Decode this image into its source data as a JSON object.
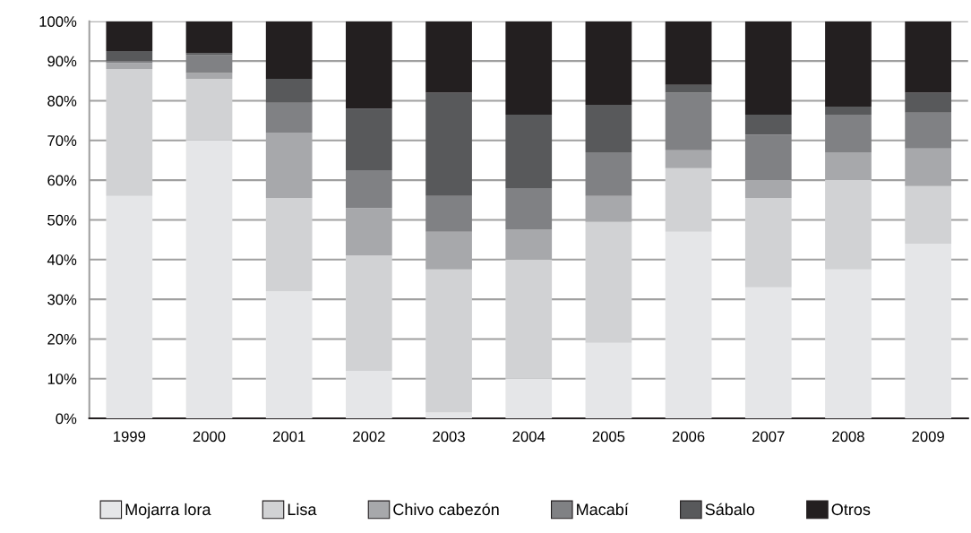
{
  "chart_data": {
    "type": "bar",
    "stacked": true,
    "categories": [
      "1999",
      "2000",
      "2001",
      "2002",
      "2003",
      "2004",
      "2005",
      "2006",
      "2007",
      "2008",
      "2009"
    ],
    "series": [
      {
        "name": "Mojarra lora",
        "color": "#e5e6e8",
        "values": [
          56,
          70,
          32,
          12,
          1.5,
          10,
          19,
          47,
          33,
          37.5,
          44
        ]
      },
      {
        "name": "Lisa",
        "color": "#d1d2d4",
        "values": [
          32,
          15.5,
          23.5,
          29,
          36,
          30,
          30.5,
          16,
          22.5,
          22.5,
          14.5
        ]
      },
      {
        "name": "Chivo cabezón",
        "color": "#a7a8ab",
        "values": [
          1.5,
          1.5,
          16.5,
          12,
          9.5,
          7.5,
          6.5,
          4.5,
          4.5,
          7,
          9.5
        ]
      },
      {
        "name": "Macabí",
        "color": "#808184",
        "values": [
          0.5,
          4.5,
          7.5,
          9.5,
          9,
          10.5,
          11,
          14.5,
          11.5,
          9.5,
          9
        ]
      },
      {
        "name": "Sábalo",
        "color": "#58595b",
        "values": [
          2.5,
          0.5,
          6,
          15.5,
          26,
          18.5,
          12,
          2,
          5,
          2,
          5
        ]
      },
      {
        "name": "Otros",
        "color": "#231f20",
        "values": [
          7.5,
          8,
          14.5,
          22,
          18,
          23.5,
          21,
          16,
          23.5,
          21.5,
          18
        ]
      }
    ],
    "ylim": [
      0,
      100
    ],
    "yticks": [
      {
        "value": 0,
        "label": "0%"
      },
      {
        "value": 10,
        "label": "10%"
      },
      {
        "value": 20,
        "label": "20%"
      },
      {
        "value": 30,
        "label": "30%"
      },
      {
        "value": 40,
        "label": "40%"
      },
      {
        "value": 50,
        "label": "50%"
      },
      {
        "value": 60,
        "label": "60%"
      },
      {
        "value": 70,
        "label": "70%"
      },
      {
        "value": 80,
        "label": "80%"
      },
      {
        "value": 90,
        "label": "90%"
      },
      {
        "value": 100,
        "label": "100%"
      }
    ],
    "grid": "y",
    "legend": "bottom"
  }
}
